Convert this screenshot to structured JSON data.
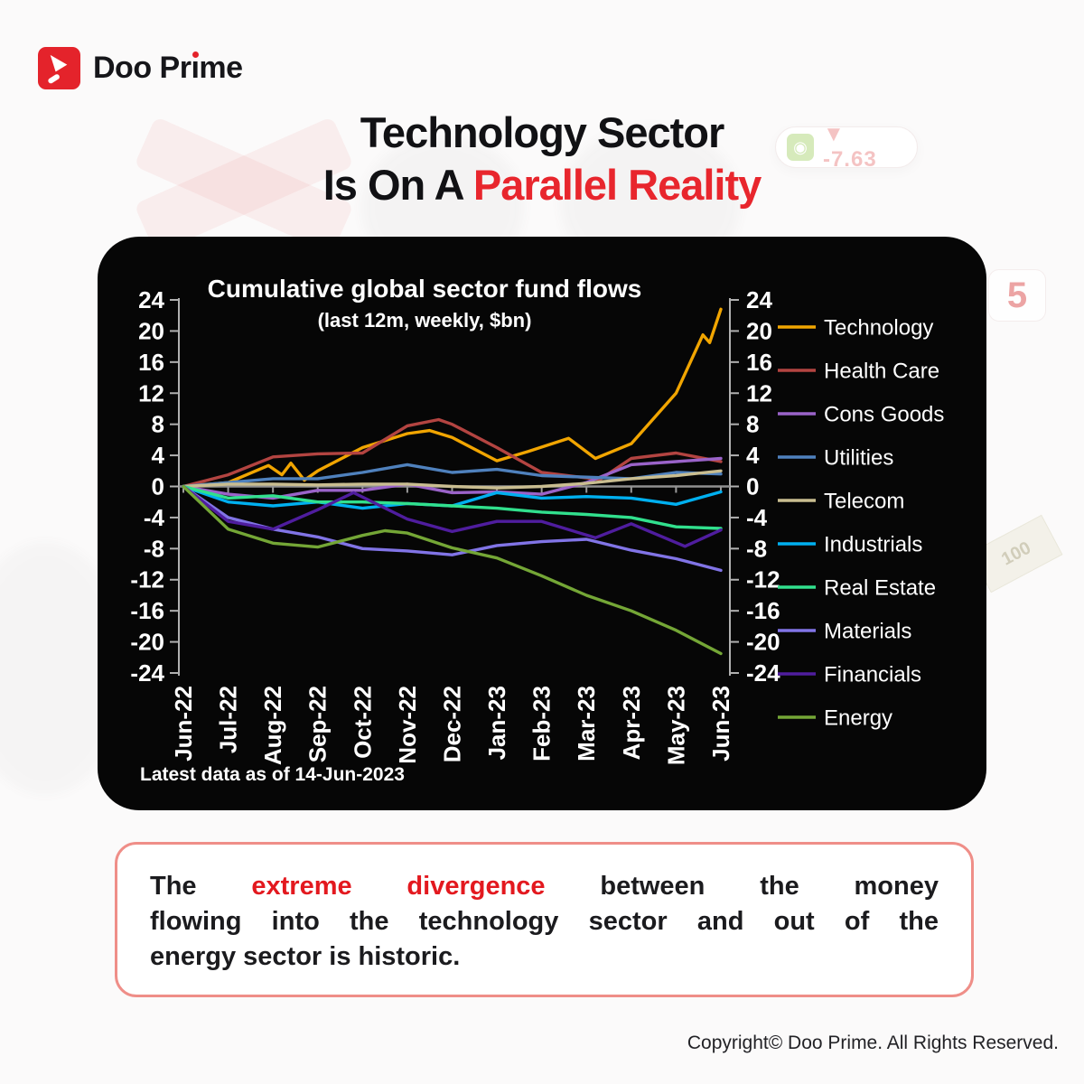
{
  "logo": {
    "brand": "Doo Prime",
    "brand_a": "Doo Pr",
    "brand_i": "ı",
    "brand_b": "me",
    "accent": "#e4232b"
  },
  "headline": {
    "line1": "Technology Sector",
    "line2_black": "Is On  A",
    "line2_red": "Parallel Reality",
    "red": "#e8262d"
  },
  "background_badge": {
    "ticker_value": "▼ -7.63",
    "ghost_digit": "5",
    "ghost_bill": "100"
  },
  "chart_data": {
    "type": "line",
    "title": "Cumulative global sector fund flows",
    "subtitle": "(last 12m, weekly, $bn)",
    "footnote": "Latest data as of 14-Jun-2023",
    "x_tick_labels": [
      "Jun-22",
      "Jul-22",
      "Aug-22",
      "Sep-22",
      "Oct-22",
      "Nov-22",
      "Dec-22",
      "Jan-23",
      "Feb-23",
      "Mar-23",
      "Apr-23",
      "May-23",
      "Jun-23"
    ],
    "y_ticks": [
      24,
      20,
      16,
      12,
      8,
      4,
      0,
      -4,
      -8,
      -12,
      -16,
      -20,
      -24
    ],
    "ylim": [
      -24,
      24
    ],
    "grid": "zero-line-only",
    "legend_position": "right",
    "background": "#060606",
    "series": [
      {
        "name": "Technology",
        "color": "#f1a501",
        "x": [
          0,
          1,
          1.9,
          2.2,
          2.4,
          2.7,
          3,
          4,
          5,
          5.5,
          6,
          7,
          7.7,
          8.6,
          9.2,
          10,
          11,
          11.6,
          11.75,
          12
        ],
        "values": [
          0,
          0.5,
          2.7,
          1.5,
          3,
          0.8,
          2,
          5,
          6.8,
          7.2,
          6.3,
          3.3,
          4.5,
          6.2,
          3.6,
          5.5,
          12,
          19.5,
          18.5,
          22.8
        ]
      },
      {
        "name": "Health Care",
        "color": "#b34441",
        "x": [
          0,
          1,
          2,
          3,
          4,
          5,
          5.7,
          6,
          7,
          8,
          9.3,
          10,
          11,
          12
        ],
        "values": [
          0,
          1.5,
          3.8,
          4.2,
          4.3,
          7.8,
          8.6,
          8,
          5,
          1.8,
          0.9,
          3.6,
          4.3,
          3.2
        ]
      },
      {
        "name": "Cons Goods",
        "color": "#9a63c9",
        "x": [
          0,
          1,
          2,
          3,
          4,
          5,
          6,
          7,
          8,
          9,
          10,
          11,
          12
        ],
        "values": [
          0,
          -1,
          -1.5,
          -0.5,
          -0.5,
          0.3,
          -0.8,
          -0.7,
          -1,
          0.5,
          2.8,
          3.2,
          3.6
        ]
      },
      {
        "name": "Utilities",
        "color": "#4f81bd",
        "x": [
          0,
          1,
          2,
          3,
          4,
          5,
          6,
          7,
          8,
          9,
          10,
          11,
          12
        ],
        "values": [
          0,
          0.5,
          1,
          1,
          1.8,
          2.8,
          1.8,
          2.2,
          1.4,
          1.2,
          1,
          1.8,
          1.6
        ]
      },
      {
        "name": "Telecom",
        "color": "#c9bd90",
        "x": [
          0,
          1,
          2,
          3,
          4,
          5,
          6,
          7,
          8,
          9,
          10,
          11,
          12
        ],
        "values": [
          0,
          0.3,
          0.3,
          0.2,
          0.3,
          0.3,
          0,
          -0.2,
          0,
          0.4,
          1,
          1.4,
          2
        ]
      },
      {
        "name": "Industrials",
        "color": "#00b0f0",
        "x": [
          0,
          1,
          2,
          3,
          4,
          5,
          6,
          7,
          8,
          9,
          10,
          11,
          12
        ],
        "values": [
          0,
          -2,
          -2.5,
          -2,
          -2.8,
          -2.2,
          -2.5,
          -0.8,
          -1.5,
          -1.3,
          -1.5,
          -2.3,
          -0.7
        ]
      },
      {
        "name": "Real Estate",
        "color": "#31e08d",
        "x": [
          0,
          1,
          2,
          3,
          4,
          5,
          6,
          7,
          8,
          9,
          10,
          11,
          12
        ],
        "values": [
          0,
          -1.5,
          -1.2,
          -2,
          -2,
          -2.2,
          -2.5,
          -2.8,
          -3.3,
          -3.6,
          -4,
          -5.2,
          -5.4
        ]
      },
      {
        "name": "Materials",
        "color": "#8174e6",
        "x": [
          0,
          1,
          2,
          3,
          4,
          5,
          6,
          7,
          8,
          9,
          10,
          11,
          12
        ],
        "values": [
          0,
          -4,
          -5.5,
          -6.5,
          -8,
          -8.3,
          -8.8,
          -7.6,
          -7.1,
          -6.8,
          -8.2,
          -9.3,
          -10.8
        ]
      },
      {
        "name": "Financials",
        "color": "#4f1d9e",
        "x": [
          0,
          1,
          2,
          3,
          3.8,
          5,
          6,
          7,
          8,
          9.2,
          10,
          11.2,
          12
        ],
        "values": [
          0,
          -4.5,
          -5.5,
          -3,
          -0.8,
          -4.2,
          -5.8,
          -4.5,
          -4.5,
          -6.6,
          -4.8,
          -7.7,
          -5.6
        ]
      },
      {
        "name": "Energy",
        "color": "#74a636",
        "x": [
          0,
          1,
          2,
          3,
          4,
          4.5,
          5,
          6,
          7,
          8,
          9,
          10,
          11,
          12
        ],
        "values": [
          0,
          -5.5,
          -7.3,
          -7.8,
          -6.3,
          -5.7,
          -6,
          -7.9,
          -9.2,
          -11.5,
          -14,
          -16,
          -18.5,
          -21.5
        ]
      }
    ]
  },
  "note": {
    "l1a": "The ",
    "l1b": "extreme divergence",
    "l1c": " between the money",
    "l2": "flowing into the technology sector and out of the",
    "l3": "energy sector is historic.",
    "highlight_color": "#e3191f"
  },
  "footer": {
    "copyright": "Copyright© Doo Prime. All Rights Reserved."
  }
}
